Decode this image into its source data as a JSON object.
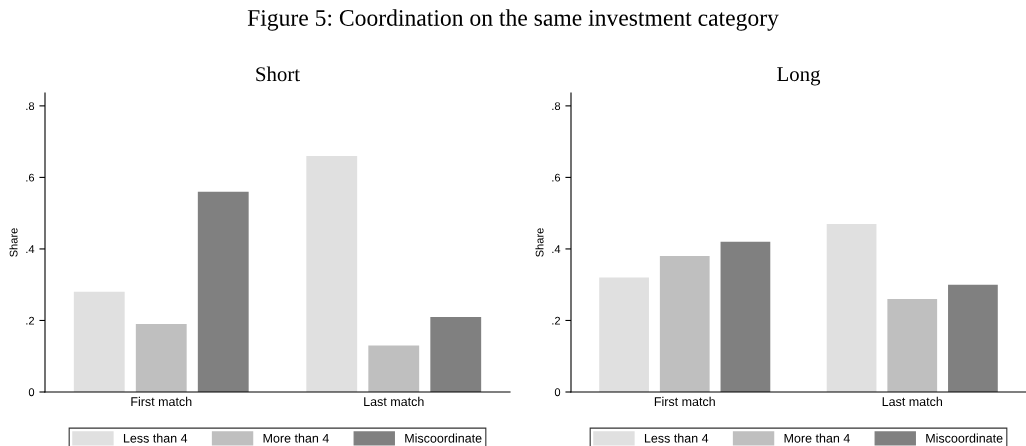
{
  "chart_data": [
    {
      "type": "bar",
      "title": "Figure 5: Coordination on the same investment category",
      "subtitle": "Short",
      "ylabel": "Share",
      "categories": [
        "First match",
        "Last match"
      ],
      "series": [
        {
          "name": "Less than 4",
          "color": "#e0e0e0",
          "values": [
            0.28,
            0.66
          ]
        },
        {
          "name": "More than 4",
          "color": "#bfbfbf",
          "values": [
            0.19,
            0.13
          ]
        },
        {
          "name": "Miscoordinate",
          "color": "#808080",
          "values": [
            0.56,
            0.21
          ]
        }
      ],
      "ylim": [
        0,
        0.836
      ],
      "yticks": [
        {
          "value": 0,
          "label": "0"
        },
        {
          "value": 0.2,
          "label": ".2"
        },
        {
          "value": 0.4,
          "label": ".4"
        },
        {
          "value": 0.6,
          "label": ".6"
        },
        {
          "value": 0.8,
          "label": ".8"
        }
      ],
      "legend": "bottom",
      "grid": false
    },
    {
      "type": "bar",
      "subtitle": "Long",
      "ylabel": "Share",
      "categories": [
        "First match",
        "Last match"
      ],
      "series": [
        {
          "name": "Less than 4",
          "color": "#e0e0e0",
          "values": [
            0.32,
            0.47
          ]
        },
        {
          "name": "More than 4",
          "color": "#bfbfbf",
          "values": [
            0.38,
            0.26
          ]
        },
        {
          "name": "Miscoordinate",
          "color": "#808080",
          "values": [
            0.42,
            0.3
          ]
        }
      ],
      "ylim": [
        0,
        0.836
      ],
      "yticks": [
        {
          "value": 0,
          "label": "0"
        },
        {
          "value": 0.2,
          "label": ".2"
        },
        {
          "value": 0.4,
          "label": ".4"
        },
        {
          "value": 0.6,
          "label": ".6"
        },
        {
          "value": 0.8,
          "label": ".8"
        }
      ],
      "legend": "bottom",
      "grid": false
    }
  ]
}
